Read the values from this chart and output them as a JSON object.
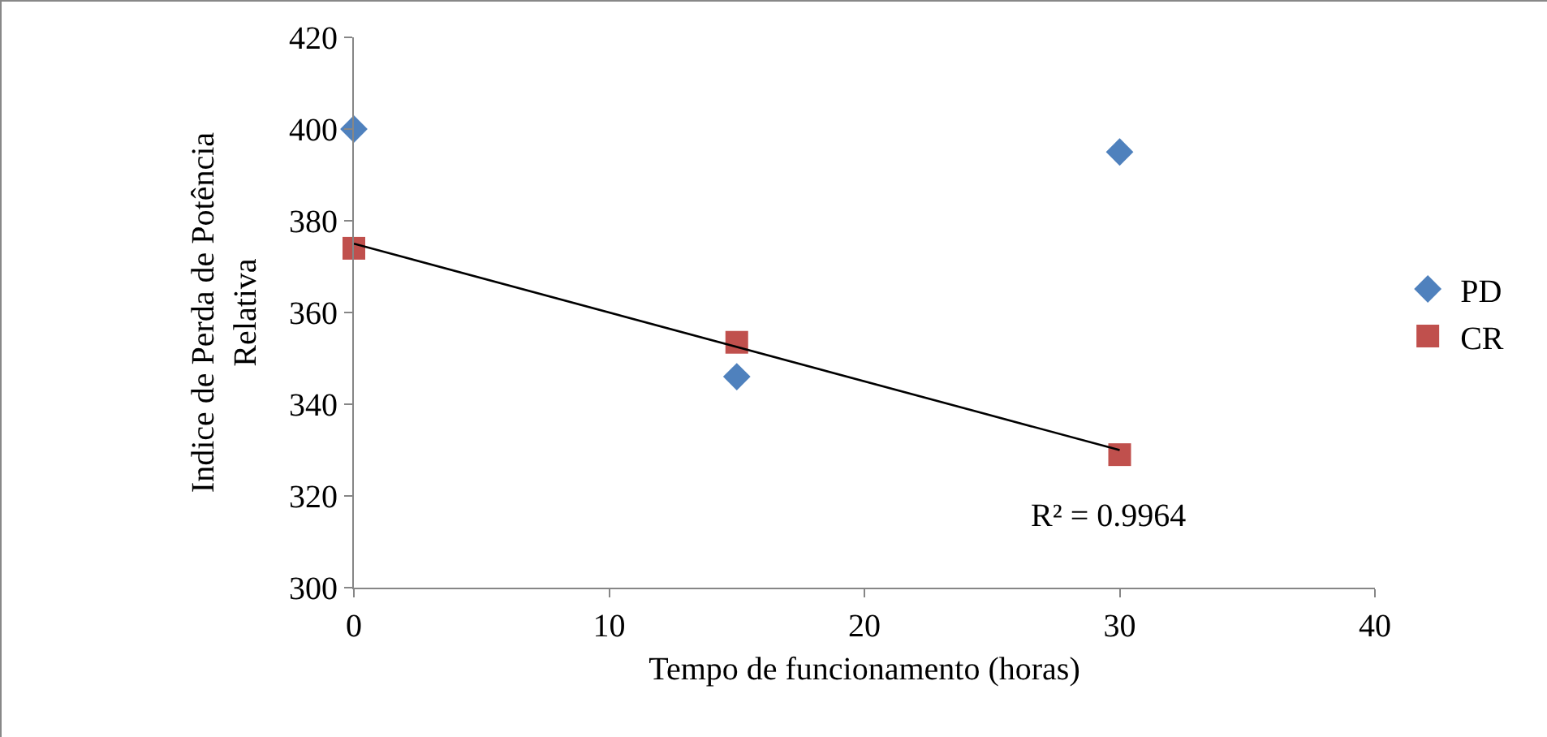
{
  "chart_data": {
    "type": "scatter",
    "xlabel": "Tempo de funcionamento (horas)",
    "ylabel": "Indice de Perda de Potência Relativa",
    "xlim": [
      0,
      40
    ],
    "xticks": [
      0,
      10,
      20,
      30,
      40
    ],
    "ylim": [
      300,
      420
    ],
    "yticks": [
      300,
      320,
      340,
      360,
      380,
      400,
      420
    ],
    "grid": false,
    "legend": "right",
    "annotations": [
      "R² = 0.9964"
    ],
    "series": [
      {
        "name": "PD",
        "color": "#4f81bd",
        "marker": "diamond",
        "x": [
          0,
          15,
          30
        ],
        "values": [
          400,
          346,
          395
        ]
      },
      {
        "name": "CR",
        "color": "#c0504d",
        "marker": "square",
        "x": [
          0,
          15,
          30
        ],
        "values": [
          374,
          353.5,
          329
        ]
      },
      {
        "type": "line",
        "color": "#000000",
        "marker": "none",
        "x": [
          0,
          30
        ],
        "values": [
          375,
          330
        ]
      }
    ]
  }
}
